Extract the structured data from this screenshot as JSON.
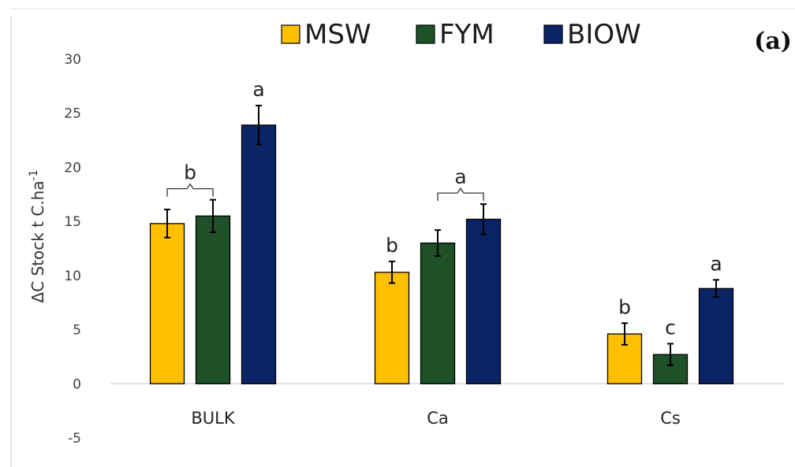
{
  "chart_data": {
    "type": "bar",
    "panel_label": "(a)",
    "ylabel": "ΔC Stock t C.ha",
    "ylabel_superscript": "-1",
    "categories": [
      "BULK",
      "Ca",
      "Cs"
    ],
    "ylim": [
      -5,
      30
    ],
    "yticks": [
      -5,
      0,
      5,
      10,
      15,
      20,
      25,
      30
    ],
    "grid": false,
    "legend_position": "top",
    "series": [
      {
        "name": "MSW",
        "color": "#FFC000",
        "values": [
          14.8,
          10.3,
          4.6
        ],
        "errors": [
          1.3,
          1.0,
          1.0
        ]
      },
      {
        "name": "FYM",
        "color": "#1E5128",
        "values": [
          15.5,
          13.0,
          2.7
        ],
        "errors": [
          1.5,
          1.2,
          1.0
        ]
      },
      {
        "name": "BIOW",
        "color": "#0B2466",
        "values": [
          23.9,
          15.2,
          8.8
        ],
        "errors": [
          1.8,
          1.4,
          0.8
        ]
      }
    ],
    "annotations": [
      {
        "category": "BULK",
        "series": [
          "MSW",
          "FYM"
        ],
        "text": "b"
      },
      {
        "category": "BULK",
        "series": [
          "BIOW"
        ],
        "text": "a"
      },
      {
        "category": "Ca",
        "series": [
          "MSW"
        ],
        "text": "b"
      },
      {
        "category": "Ca",
        "series": [
          "FYM",
          "BIOW"
        ],
        "text": "a"
      },
      {
        "category": "Cs",
        "series": [
          "MSW"
        ],
        "text": "b"
      },
      {
        "category": "Cs",
        "series": [
          "FYM"
        ],
        "text": "c"
      },
      {
        "category": "Cs",
        "series": [
          "BIOW"
        ],
        "text": "a"
      }
    ]
  }
}
